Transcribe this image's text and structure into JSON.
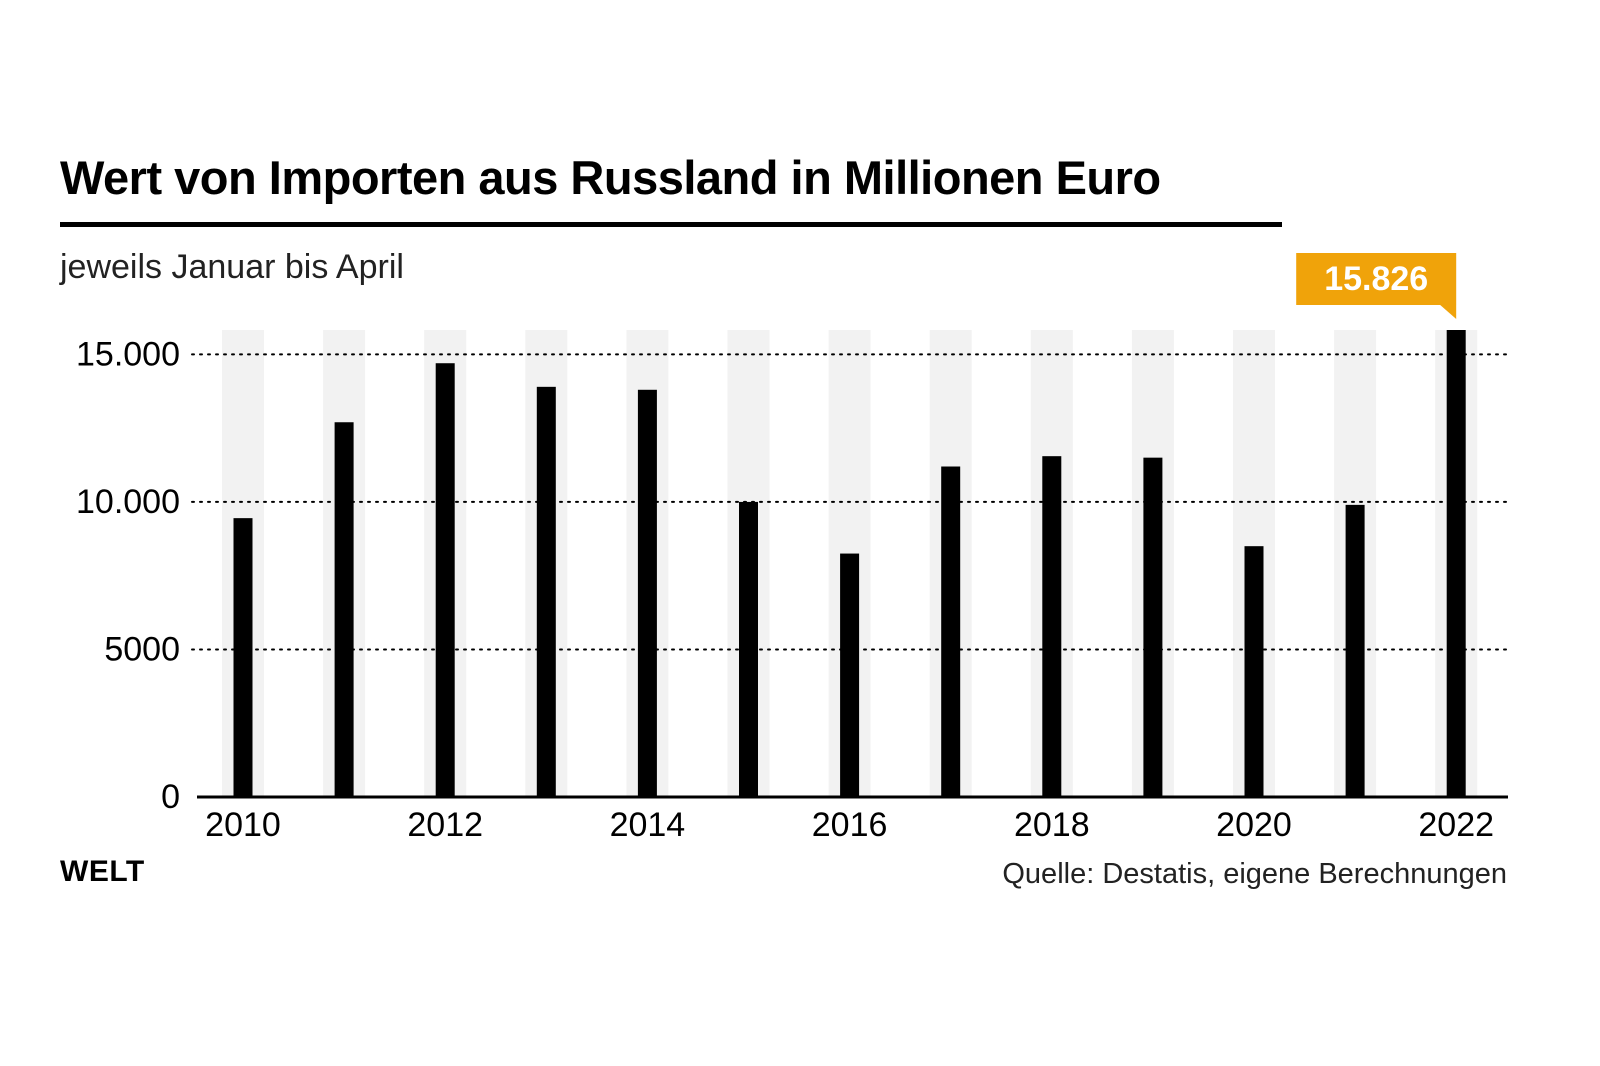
{
  "title": "Wert von Importen aus Russland in Millionen Euro",
  "subtitle": "jeweils Januar bis April",
  "footer": {
    "logo": "WELT",
    "source": "Quelle: Destatis, eigene Berechnungen"
  },
  "colors": {
    "bar": "#000000",
    "column_band": "#f2f2f2",
    "highlight": "#f0a30a",
    "highlight_text": "#ffffff",
    "grid": "#000000"
  },
  "chart_data": {
    "type": "bar",
    "categories": [
      "2010",
      "2011",
      "2012",
      "2013",
      "2014",
      "2015",
      "2016",
      "2017",
      "2018",
      "2019",
      "2020",
      "2021",
      "2022"
    ],
    "values": [
      9450,
      12700,
      14700,
      13900,
      13800,
      10000,
      8250,
      11200,
      11550,
      11500,
      8500,
      9900,
      15826
    ],
    "x_tick_labels": [
      "2010",
      "",
      "2012",
      "",
      "2014",
      "",
      "2016",
      "",
      "2018",
      "",
      "2020",
      "",
      "2022"
    ],
    "y_ticks": [
      0,
      5000,
      10000,
      15000
    ],
    "y_tick_labels": [
      "0",
      "5000",
      "10.000",
      "15.000"
    ],
    "ylim": [
      0,
      15826
    ],
    "grid": "dotted horizontal",
    "highlight": {
      "category": "2022",
      "label": "15.826"
    }
  }
}
